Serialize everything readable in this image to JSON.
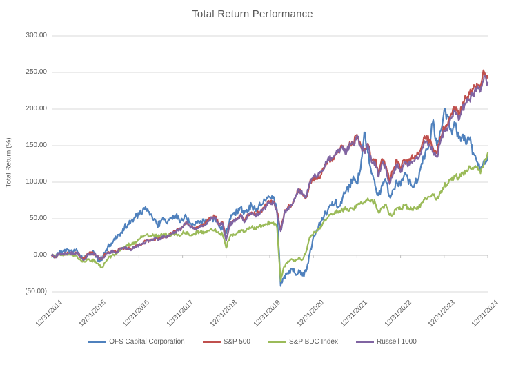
{
  "chart": {
    "title": "Total Return Performance",
    "y_axis_title": "Total Return (%)"
  },
  "chart_data": {
    "type": "line",
    "title": "Total Return Performance",
    "xlabel": "",
    "ylabel": "Total Return (%)",
    "ylim": [
      -50,
      300
    ],
    "grid": "horizontal-on",
    "legend_position": "bottom",
    "x_unit": "months since 12/31/2014",
    "x_tick_labels": [
      "12/31/2014",
      "12/31/2015",
      "12/31/2016",
      "12/31/2017",
      "12/31/2018",
      "12/31/2019",
      "12/31/2020",
      "12/31/2021",
      "12/31/2022",
      "12/31/2023",
      "12/31/2024"
    ],
    "x_tick_months": [
      0,
      12,
      24,
      36,
      48,
      60,
      72,
      84,
      96,
      108,
      120
    ],
    "y_ticks": [
      {
        "value": 300,
        "label": "300.00"
      },
      {
        "value": 250,
        "label": "250.00"
      },
      {
        "value": 200,
        "label": "200.00"
      },
      {
        "value": 150,
        "label": "150.00"
      },
      {
        "value": 100,
        "label": "100.00"
      },
      {
        "value": 50,
        "label": "50.00"
      },
      {
        "value": 0,
        "label": "0.00"
      },
      {
        "value": -50,
        "label": "(50.00)"
      }
    ],
    "series": [
      {
        "name": "OFS Capital Corporation",
        "color": "#4F81BD",
        "jitter": 3.2,
        "values": [
          0,
          -2,
          3,
          4,
          6,
          7,
          5,
          6,
          -3,
          -5,
          2,
          4,
          2,
          -7,
          -4,
          8,
          15,
          20,
          24,
          31,
          38,
          43,
          48,
          52,
          55,
          60,
          63,
          55,
          48,
          42,
          45,
          50,
          47,
          52,
          55,
          50,
          48,
          53,
          45,
          42,
          44,
          47,
          45,
          48,
          50,
          51,
          40,
          36,
          30,
          50,
          58,
          60,
          65,
          58,
          62,
          68,
          62,
          68,
          70,
          76,
          80,
          80,
          62,
          -42,
          -28,
          -25,
          -18,
          -25,
          -20,
          -28,
          -22,
          2,
          25,
          35,
          45,
          55,
          62,
          68,
          73,
          66,
          78,
          88,
          94,
          108,
          98,
          118,
          168,
          140,
          112,
          95,
          82,
          95,
          100,
          80,
          90,
          100,
          95,
          110,
          105,
          95,
          100,
          105,
          125,
          145,
          155,
          185,
          150,
          170,
          198,
          190,
          170,
          178,
          160,
          165,
          152,
          158,
          140,
          128,
          118,
          130,
          135
        ]
      },
      {
        "name": "S&P 500",
        "color": "#C0504D",
        "jitter": 2.0,
        "values": [
          0,
          -3,
          2.6,
          1,
          2,
          3.3,
          1.3,
          3.4,
          -2.7,
          -5.3,
          3,
          3.3,
          1.4,
          -3.6,
          -3.5,
          3.3,
          3.7,
          5.6,
          5.8,
          9.7,
          9.9,
          9.9,
          7.9,
          12,
          13.5,
          15.7,
          20.2,
          20.3,
          21.6,
          23.3,
          24,
          26.6,
          27,
          29.6,
          32.6,
          36.6,
          38.3,
          46.3,
          40.9,
          37.4,
          37.9,
          41.2,
          42.1,
          47.4,
          52.2,
          53,
          42.5,
          45.4,
          22,
          42.8,
          47.4,
          50.2,
          56.3,
          46.3,
          56.6,
          58.8,
          56.3,
          59.2,
          62.7,
          68.6,
          73.9,
          73.8,
          59.5,
          35,
          58.3,
          65.8,
          69.1,
          78.6,
          91.1,
          83.8,
          78.9,
          98.5,
          105.9,
          103.8,
          109.5,
          118.7,
          130.3,
          131.7,
          136.8,
          142.4,
          149.8,
          138.1,
          154.7,
          153,
          165,
          151.3,
          143.8,
          152.8,
          130.7,
          131.2,
          112.1,
          131.6,
          122.2,
          101.7,
          118.1,
          130.3,
          117.1,
          130.7,
          125.1,
          133.3,
          137,
          138,
          153.8,
          161.9,
          157.7,
          145.4,
          140.2,
          162.2,
          174.2,
          178.8,
          193.6,
          203.1,
          190.7,
          205.1,
          216.1,
          219.9,
          227.6,
          234.6,
          231.5,
          250.9,
          242.7
        ]
      },
      {
        "name": "S&P BDC Index",
        "color": "#9BBB59",
        "jitter": 2.0,
        "values": [
          0,
          -2,
          1,
          0,
          2,
          2,
          -1,
          -2,
          -7,
          -9,
          -6,
          -7,
          -8,
          -14,
          -17,
          -8,
          -2,
          1,
          3,
          8,
          12,
          14,
          15,
          18,
          22,
          26,
          28,
          26,
          27,
          26,
          28,
          29,
          27,
          28,
          29,
          28,
          30,
          32,
          27,
          29,
          31,
          33,
          31,
          34,
          36,
          36,
          30,
          29,
          10,
          25,
          29,
          31,
          34,
          32,
          36,
          38,
          37,
          40,
          41,
          43,
          45,
          45,
          38,
          -35,
          -15,
          -8,
          -5,
          -8,
          -3,
          -6,
          5,
          25,
          30,
          33,
          40,
          48,
          52,
          57,
          60,
          58,
          62,
          64,
          63,
          62,
          70,
          72,
          73,
          78,
          76,
          72,
          58,
          65,
          70,
          55,
          58,
          65,
          63,
          68,
          66,
          62,
          64,
          66,
          72,
          78,
          80,
          82,
          78,
          85,
          95,
          98,
          103,
          108,
          107,
          112,
          115,
          122,
          118,
          120,
          112,
          128,
          140
        ]
      },
      {
        "name": "Russell 1000",
        "color": "#8064A2",
        "jitter": 2.0,
        "values": [
          0,
          -2.8,
          2.8,
          1.4,
          2.3,
          3.6,
          1.5,
          3.2,
          -2.9,
          -5.7,
          2.3,
          2.7,
          0.9,
          -4.6,
          -4.5,
          2.5,
          3.1,
          5,
          5.2,
          9.3,
          9.7,
          9.8,
          7.7,
          12.2,
          13.1,
          15.2,
          19.5,
          19.7,
          21,
          22.6,
          23.4,
          25.9,
          26.3,
          28.9,
          31.8,
          35.7,
          37.7,
          45.2,
          40,
          36.4,
          36.9,
          40.4,
          41.2,
          46.2,
          51,
          51.5,
          41,
          43.9,
          20,
          41.8,
          46.5,
          48.8,
          54.8,
          44.9,
          54.9,
          57.1,
          54.5,
          57.4,
          61,
          66.9,
          72.3,
          72,
          58,
          33,
          57,
          64.5,
          68.3,
          78,
          90.5,
          83.5,
          79,
          99.5,
          108.5,
          107,
          113,
          120.5,
          132,
          133,
          138.5,
          143,
          149.5,
          138.5,
          153.5,
          151.5,
          163.8,
          149,
          142,
          150.5,
          127.5,
          127,
          107.5,
          127,
          118,
          97.5,
          113,
          124.5,
          113.4,
          127,
          121.5,
          128.5,
          131.5,
          132.5,
          147.5,
          155.5,
          151,
          139.5,
          134.5,
          155.5,
          170,
          173,
          187.5,
          197,
          184.5,
          199,
          208.5,
          213.5,
          220.5,
          227.5,
          224,
          244,
          236.1
        ]
      }
    ]
  },
  "colors": {
    "text": "#595959",
    "gridline": "#d9d9d9",
    "axis_line": "#bfbfbf",
    "frame_border": "#d9d9d9"
  }
}
